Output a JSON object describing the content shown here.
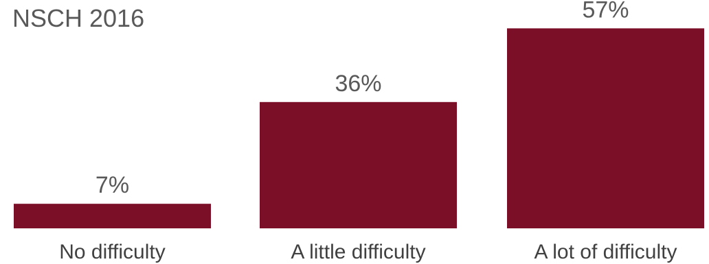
{
  "chart_data": {
    "type": "bar",
    "title": "NSCH 2016",
    "categories": [
      "No difficulty",
      "A little difficulty",
      "A lot of difficulty"
    ],
    "values": [
      7,
      36,
      57
    ],
    "value_labels": [
      "7%",
      "36%",
      "57%"
    ],
    "ylim": [
      0,
      60
    ],
    "bar_color": "#7b0f27",
    "grid": false,
    "legend": "none",
    "xlabel": "",
    "ylabel": ""
  }
}
